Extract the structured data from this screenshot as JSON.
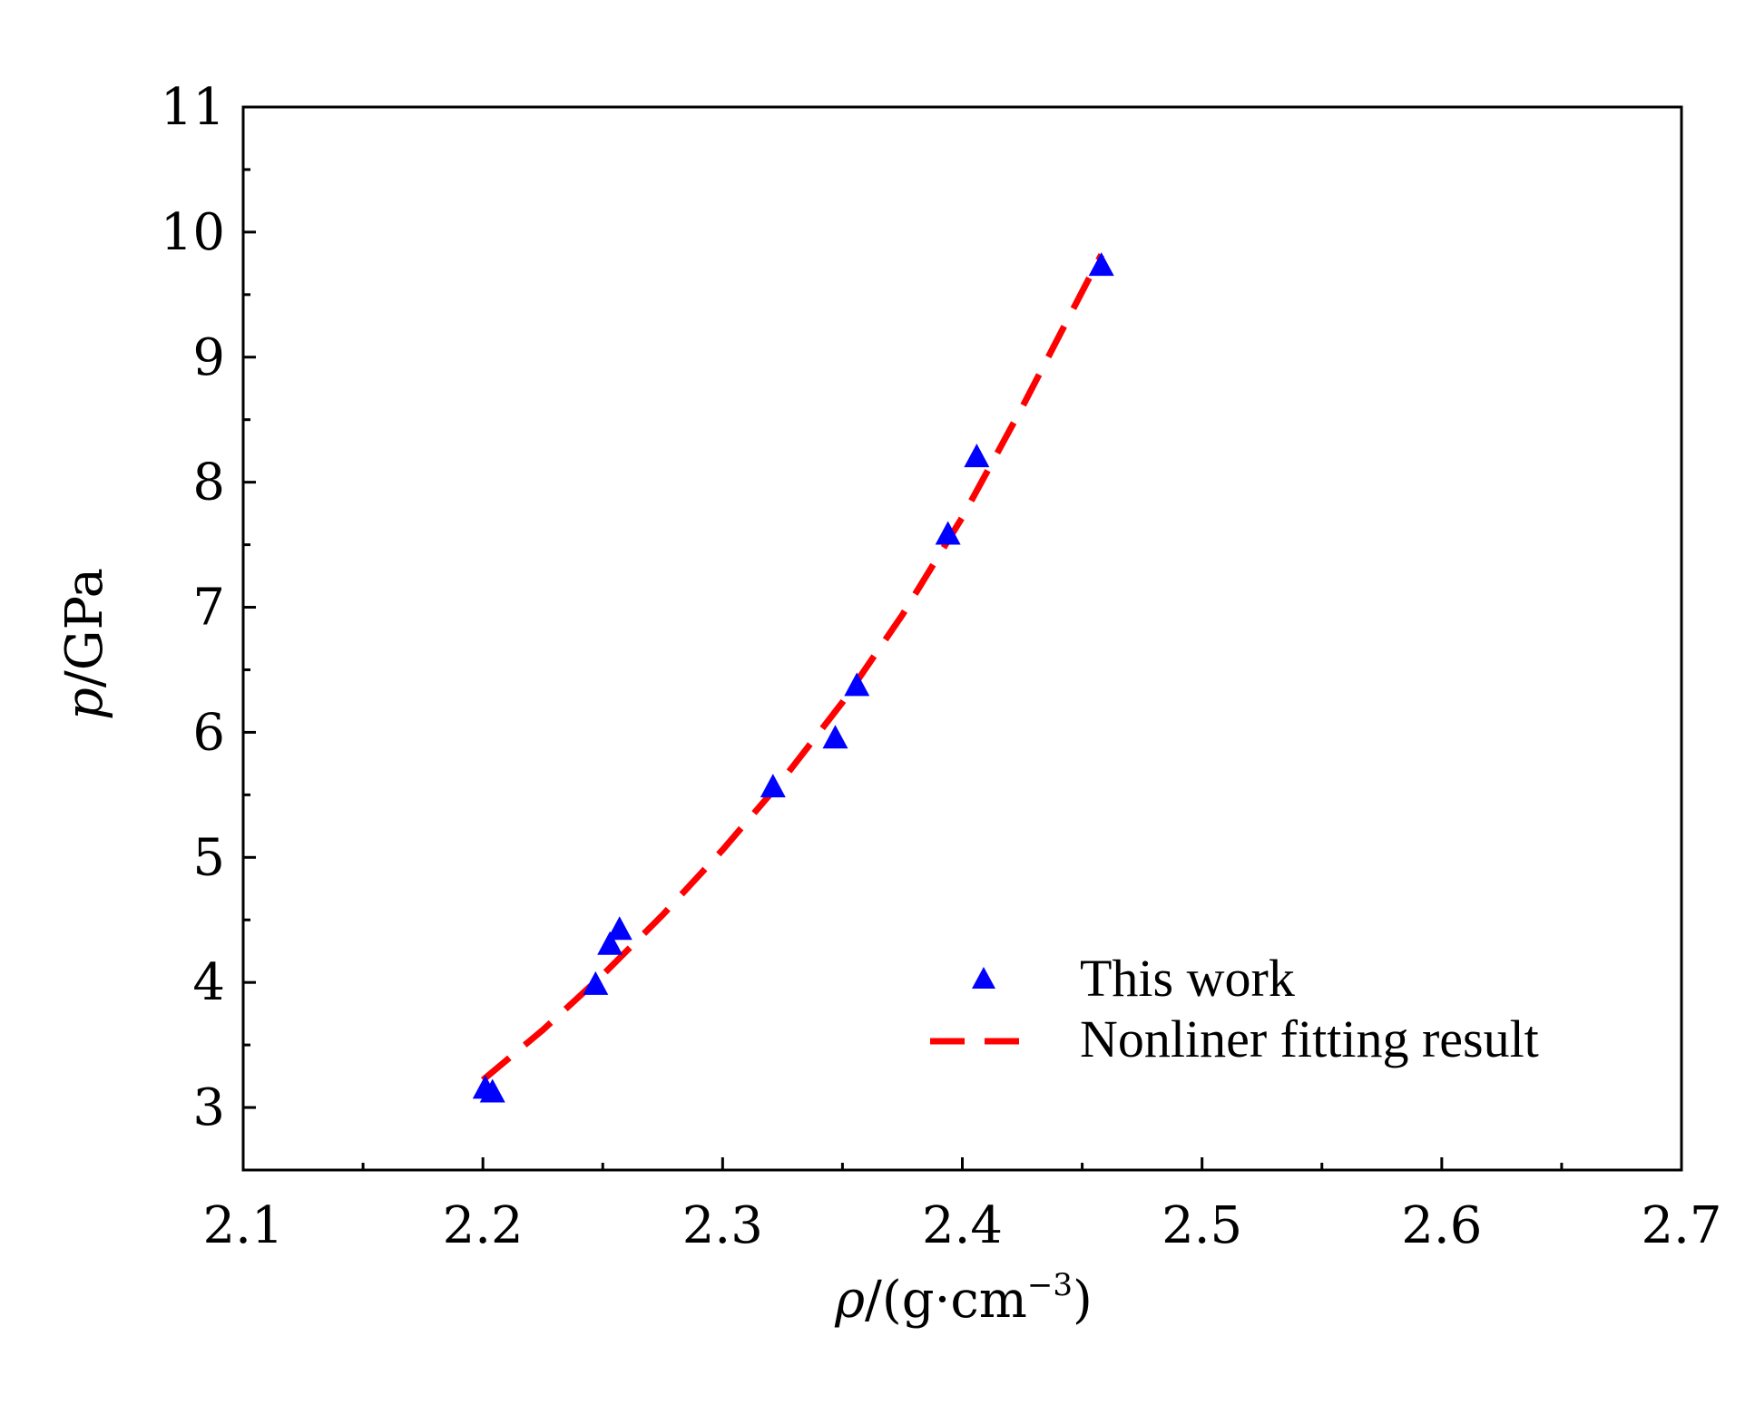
{
  "chart_data": {
    "type": "scatter",
    "title": "",
    "xlabel": "ρ/(g·cm⁻³)",
    "xlabel_parts": {
      "symbol": "ρ",
      "unit_open": "/(g",
      "dot": "·",
      "unit_mid": "cm",
      "exponent": "−3",
      "unit_close": ")"
    },
    "ylabel": "p/GPa",
    "ylabel_parts": {
      "symbol": "p",
      "unit": "/GPa"
    },
    "xlim": [
      2.1,
      2.7
    ],
    "ylim": [
      2.5,
      11
    ],
    "x_ticks": [
      "2.1",
      "2.2",
      "2.3",
      "2.4",
      "2.5",
      "2.6",
      "2.7"
    ],
    "y_ticks": [
      "3",
      "4",
      "5",
      "6",
      "7",
      "8",
      "9",
      "10",
      "11"
    ],
    "grid": false,
    "legend_position": "bottom-right",
    "series": [
      {
        "name": "This work",
        "kind": "scatter",
        "marker": "triangle",
        "color": "#0000ff",
        "x": [
          2.201,
          2.204,
          2.247,
          2.253,
          2.257,
          2.321,
          2.347,
          2.356,
          2.394,
          2.406,
          2.458
        ],
        "y": [
          3.15,
          3.12,
          3.98,
          4.3,
          4.42,
          5.56,
          5.95,
          6.37,
          7.58,
          8.2,
          9.73
        ]
      },
      {
        "name": "Nonliner fitting result",
        "kind": "line",
        "style": "dashed",
        "color": "#ff0000",
        "x": [
          2.2,
          2.225,
          2.25,
          2.275,
          2.3,
          2.325,
          2.35,
          2.375,
          2.4,
          2.425,
          2.458
        ],
        "y": [
          3.22,
          3.62,
          4.06,
          4.54,
          5.06,
          5.62,
          6.24,
          6.94,
          7.72,
          8.6,
          9.82
        ]
      }
    ]
  }
}
